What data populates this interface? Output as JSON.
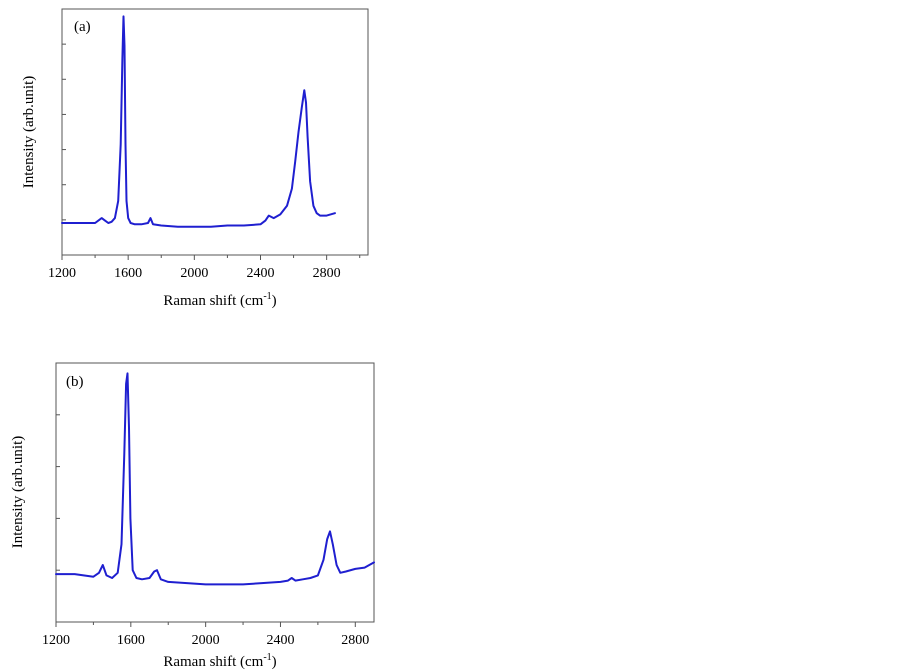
{
  "chart_data": [
    {
      "type": "line",
      "panel_label": "(a)",
      "xlabel": "Raman shift (cm",
      "xlabel_sup": "-1",
      "xlabel_close": ")",
      "ylabel": "Intensity (arb.unit)",
      "xlim": [
        1200,
        3050
      ],
      "ylim": [
        0,
        100
      ],
      "xticks": [
        "1200",
        "1600",
        "2000",
        "2400",
        "2800"
      ],
      "grid": false,
      "series": [
        {
          "color": "#1f1fd0",
          "x": [
            1200,
            1300,
            1400,
            1440,
            1460,
            1480,
            1500,
            1520,
            1540,
            1555,
            1565,
            1572,
            1578,
            1584,
            1590,
            1600,
            1615,
            1640,
            1680,
            1720,
            1735,
            1750,
            1800,
            1900,
            2000,
            2100,
            2200,
            2300,
            2400,
            2430,
            2450,
            2480,
            2520,
            2560,
            2590,
            2610,
            2630,
            2650,
            2665,
            2675,
            2685,
            2700,
            2720,
            2740,
            2760,
            2800,
            2850
          ],
          "y": [
            13,
            13,
            13,
            15,
            14,
            13,
            13.5,
            15,
            22,
            45,
            80,
            97,
            85,
            45,
            22,
            15,
            13,
            12.5,
            12.5,
            13,
            15,
            12.5,
            12,
            11.5,
            11.5,
            11.5,
            12,
            12,
            12.5,
            14,
            16,
            15,
            16.5,
            20,
            27,
            38,
            50,
            60,
            67,
            62,
            48,
            30,
            20,
            17,
            16,
            16,
            17
          ]
        }
      ]
    },
    {
      "type": "line",
      "panel_label": "(b)",
      "xlabel": "Raman shift (cm",
      "xlabel_sup": "-1",
      "xlabel_close": ")",
      "ylabel": "Intensity (arb.unit)",
      "xlim": [
        1200,
        2900
      ],
      "ylim": [
        0,
        100
      ],
      "xticks": [
        "1200",
        "1600",
        "2000",
        "2400",
        "2800"
      ],
      "grid": false,
      "series": [
        {
          "color": "#1f1fd0",
          "x": [
            1200,
            1300,
            1400,
            1430,
            1450,
            1470,
            1500,
            1530,
            1550,
            1565,
            1575,
            1582,
            1590,
            1598,
            1610,
            1630,
            1660,
            1700,
            1725,
            1740,
            1760,
            1800,
            1900,
            2000,
            2100,
            2200,
            2300,
            2400,
            2440,
            2460,
            2480,
            2520,
            2560,
            2600,
            2630,
            2650,
            2665,
            2680,
            2700,
            2720,
            2750,
            2800,
            2850,
            2900
          ],
          "y": [
            18.5,
            18.5,
            17.5,
            19,
            22,
            18,
            17,
            19,
            30,
            65,
            92,
            96,
            75,
            40,
            20,
            17,
            16.5,
            17,
            19.5,
            20,
            16.5,
            15.5,
            15,
            14.5,
            14.5,
            14.5,
            15,
            15.5,
            16,
            17,
            16,
            16.5,
            17,
            18,
            24,
            32,
            35,
            30,
            22,
            19,
            19.5,
            20.5,
            21,
            23
          ]
        }
      ]
    }
  ]
}
